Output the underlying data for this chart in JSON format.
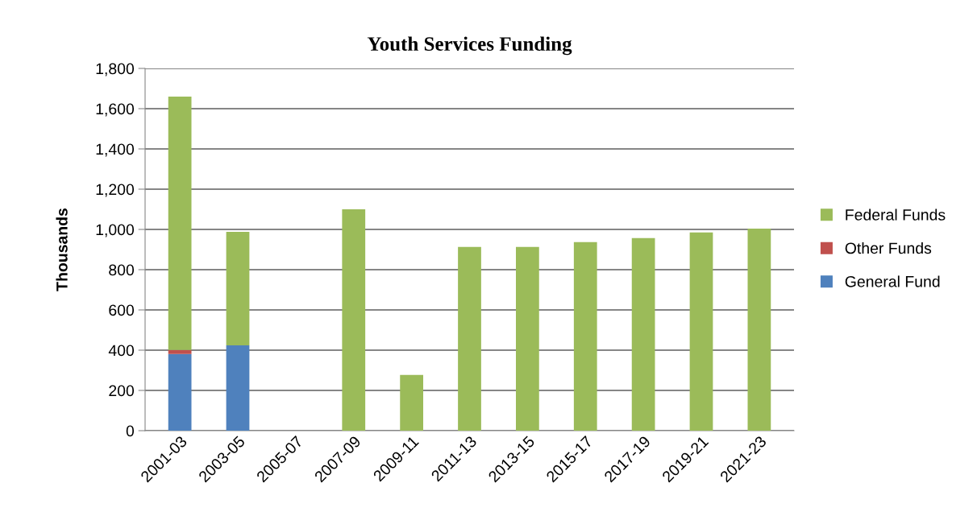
{
  "chart_data": {
    "type": "bar",
    "title": "Youth Services Funding",
    "ylabel": "Thousands",
    "stacked": true,
    "categories": [
      "2001-03",
      "2003-05",
      "2005-07",
      "2007-09",
      "2009-11",
      "2011-13",
      "2013-15",
      "2015-17",
      "2017-19",
      "2019-21",
      "2021-23"
    ],
    "series": [
      {
        "name": "General Fund",
        "color": "#4f81bd",
        "values": [
          381,
          424,
          0,
          0,
          0,
          0,
          0,
          0,
          0,
          0,
          0
        ]
      },
      {
        "name": "Other Funds",
        "color": "#c0504d",
        "values": [
          20,
          0,
          0,
          0,
          null,
          0,
          0,
          0,
          0,
          0,
          0
        ]
      },
      {
        "name": "Federal Funds",
        "color": "#9bbb59",
        "values": [
          1259,
          564,
          0,
          1100,
          277,
          913,
          913,
          937,
          957,
          985,
          1004
        ]
      }
    ],
    "ylim": [
      0,
      1800
    ],
    "yticks": [
      {
        "value": 0,
        "label": "0"
      },
      {
        "value": 200,
        "label": "200"
      },
      {
        "value": 400,
        "label": "400"
      },
      {
        "value": 600,
        "label": "600"
      },
      {
        "value": 800,
        "label": "800"
      },
      {
        "value": 1000,
        "label": "1,000"
      },
      {
        "value": 1200,
        "label": "1,200"
      },
      {
        "value": 1400,
        "label": "1,400"
      },
      {
        "value": 1600,
        "label": "1,600"
      },
      {
        "value": 1800,
        "label": "1,800"
      }
    ],
    "grid": "y",
    "legend": "right"
  }
}
